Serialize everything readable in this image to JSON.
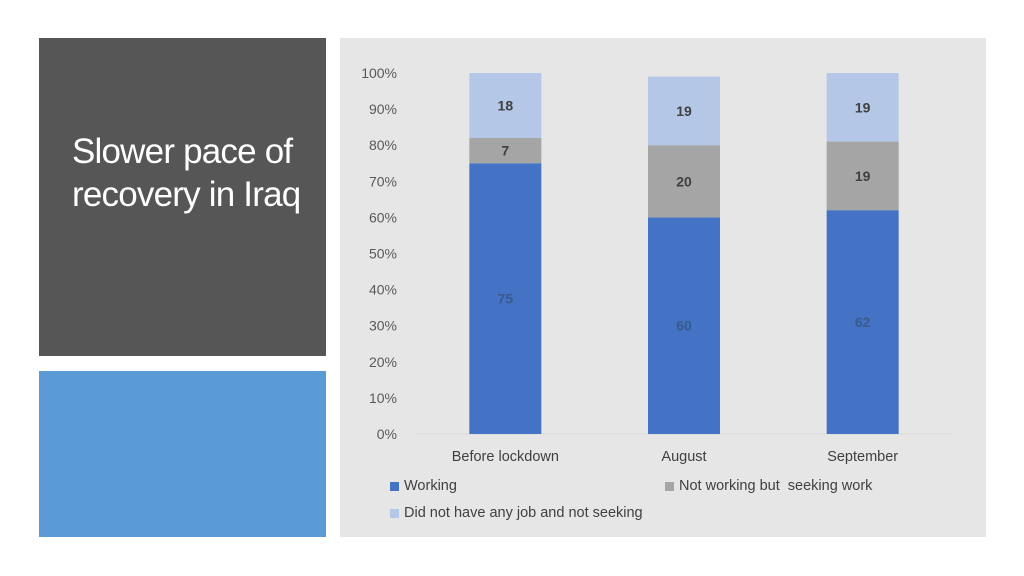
{
  "slide": {
    "title": "Slower pace of recovery in Iraq"
  },
  "colors": {
    "title_panel": "#565656",
    "accent_panel": "#5b9bd5",
    "chart_background": "#e7e6e6"
  },
  "chart_data": {
    "type": "bar",
    "stacked": true,
    "categories": [
      "Before lockdown",
      "August",
      "September"
    ],
    "series": [
      {
        "name": "Working",
        "values": [
          75,
          60,
          62
        ],
        "color": "#4472c4",
        "label_color": "#3a5a8c"
      },
      {
        "name": "Not working but  seeking work",
        "values": [
          7,
          20,
          19
        ],
        "color": "#a5a5a5",
        "label_color": "#404040"
      },
      {
        "name": "Did not have any job and not seeking",
        "values": [
          18,
          19,
          19
        ],
        "color": "#b4c7e7",
        "label_color": "#404040"
      }
    ],
    "y_ticks": [
      "0%",
      "10%",
      "20%",
      "30%",
      "40%",
      "50%",
      "60%",
      "70%",
      "80%",
      "90%",
      "100%"
    ],
    "ylim": [
      0,
      100
    ],
    "grid": false,
    "legend_position": "bottom",
    "title": "",
    "xlabel": "",
    "ylabel": ""
  }
}
